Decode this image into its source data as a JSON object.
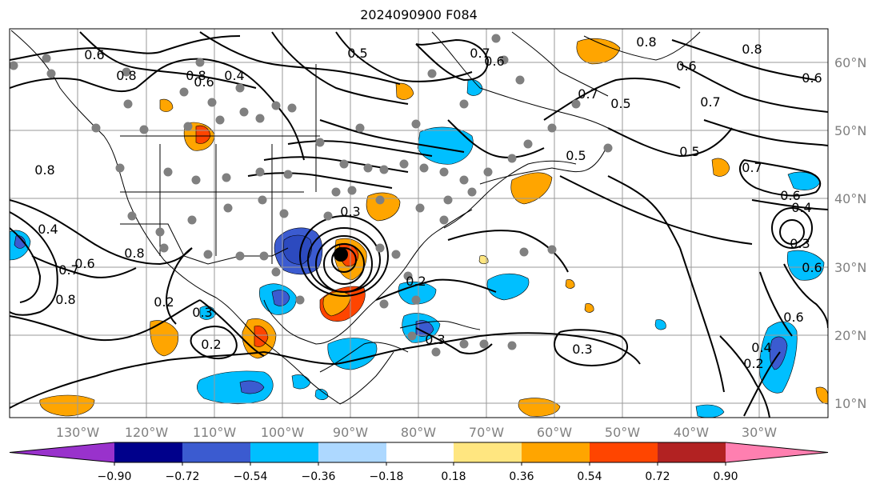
{
  "title": "2024090900 F084",
  "map": {
    "lon_labels": [
      "130°W",
      "120°W",
      "110°W",
      "100°W",
      "90°W",
      "80°W",
      "70°W",
      "60°W",
      "50°W",
      "40°W",
      "30°W"
    ],
    "lat_labels": [
      "60°N",
      "50°N",
      "40°N",
      "30°N",
      "20°N",
      "10°N"
    ],
    "contour_labels": [
      "0.6",
      "0.8",
      "0.6",
      "0.4",
      "0.5",
      "0.7",
      "0.8",
      "0.6",
      "0.5",
      "0.7",
      "0.6",
      "0.7",
      "0.8",
      "0.6",
      "0.5",
      "0.7",
      "0.6",
      "0.4",
      "0.3",
      "0.6",
      "0.8",
      "0.8",
      "0.7",
      "0.6",
      "0.8",
      "0.4",
      "0.2",
      "0.3",
      "0.2",
      "0.3",
      "0.2",
      "0.3",
      "0.3",
      "0.2",
      "0.4",
      "0.6",
      "0.5",
      "0.8"
    ],
    "colors": {
      "fill_neg_strong": "#3b5bd0",
      "fill_neg_mid": "#00bfff",
      "fill_neg_weak": "#add8ff",
      "fill_pos_weak": "#ffe680",
      "fill_pos_mid": "#ffa500",
      "fill_pos_strong": "#ff4500",
      "station_dot": "#808080",
      "storm_center": "#000000"
    }
  },
  "colorbar": {
    "ticks": [
      "−0.90",
      "−0.72",
      "−0.54",
      "−0.36",
      "−0.18",
      "0.18",
      "0.36",
      "0.54",
      "0.72",
      "0.90"
    ],
    "colors": [
      "#9932cc",
      "#00008b",
      "#3b5bd0",
      "#00bfff",
      "#add8ff",
      "#ffffff",
      "#ffe680",
      "#ffa500",
      "#ff4500",
      "#b22222",
      "#ff7fb0"
    ]
  }
}
